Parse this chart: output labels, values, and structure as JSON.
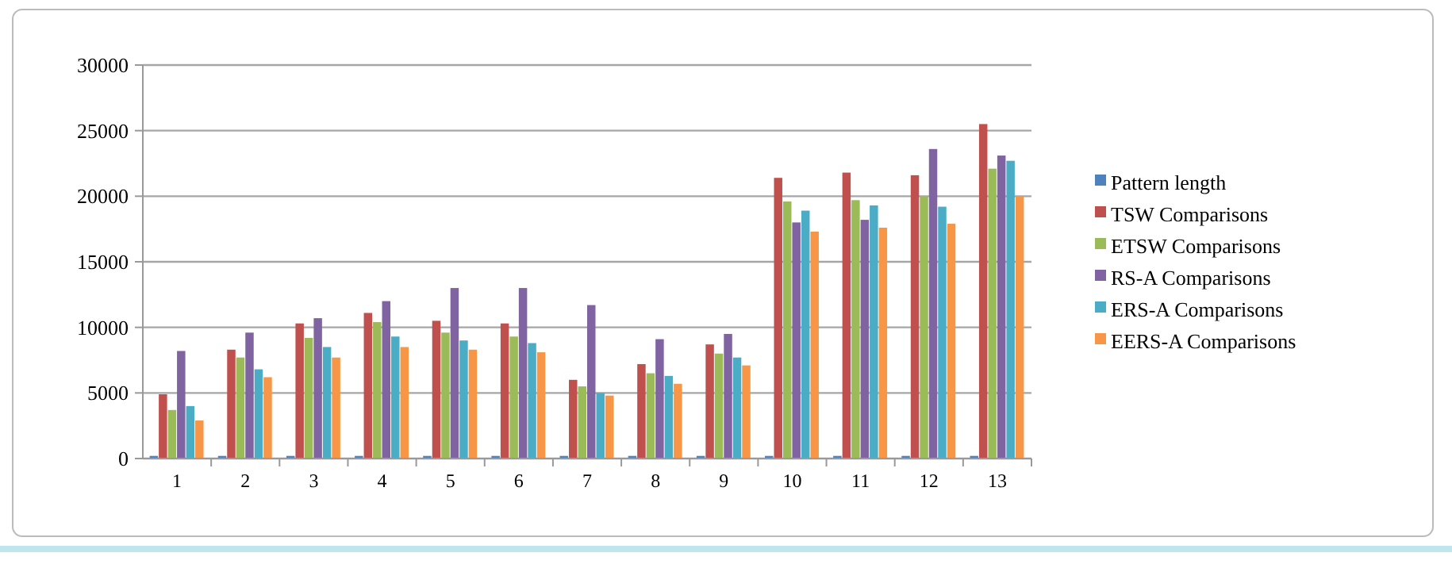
{
  "chart_data": {
    "type": "bar",
    "categories": [
      "1",
      "2",
      "3",
      "4",
      "5",
      "6",
      "7",
      "8",
      "9",
      "10",
      "11",
      "12",
      "13"
    ],
    "series": [
      {
        "name": "Pattern length",
        "color": "#4f81bd",
        "values": [
          200,
          200,
          200,
          200,
          200,
          200,
          200,
          200,
          200,
          200,
          200,
          200,
          200
        ]
      },
      {
        "name": "TSW Comparisons",
        "color": "#c0504d",
        "values": [
          4900,
          8300,
          10300,
          11100,
          10500,
          10300,
          6000,
          7200,
          8700,
          21400,
          21800,
          21600,
          25500
        ]
      },
      {
        "name": "ETSW Comparisons",
        "color": "#9bbb59",
        "values": [
          3700,
          7700,
          9200,
          10400,
          9600,
          9300,
          5500,
          6500,
          8000,
          19600,
          19700,
          20000,
          22100
        ]
      },
      {
        "name": "RS-A Comparisons",
        "color": "#8064a2",
        "values": [
          8200,
          9600,
          10700,
          12000,
          13000,
          13000,
          11700,
          9100,
          9500,
          18000,
          18200,
          23600,
          23100
        ]
      },
      {
        "name": "ERS-A Comparisons",
        "color": "#4bacc6",
        "values": [
          4000,
          6800,
          8500,
          9300,
          9000,
          8800,
          5000,
          6300,
          7700,
          18900,
          19300,
          19200,
          22700
        ]
      },
      {
        "name": "EERS-A Comparisons",
        "color": "#f79646",
        "values": [
          2900,
          6200,
          7700,
          8500,
          8300,
          8100,
          4800,
          5700,
          7100,
          17300,
          17600,
          17900,
          20000
        ]
      }
    ],
    "ylim": [
      0,
      30000
    ],
    "yticks": [
      0,
      5000,
      10000,
      15000,
      20000,
      25000,
      30000
    ],
    "grid": "y",
    "legend": "right"
  }
}
